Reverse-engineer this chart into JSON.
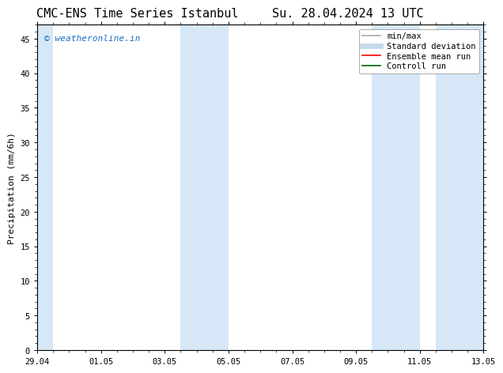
{
  "title_left": "CMC-ENS Time Series Istanbul",
  "title_right": "Su. 28.04.2024 13 UTC",
  "ylabel": "Precipitation (mm/6h)",
  "xlim_days": [
    0.0,
    14.0
  ],
  "ylim": [
    0,
    47
  ],
  "yticks": [
    0,
    5,
    10,
    15,
    20,
    25,
    30,
    35,
    40,
    45
  ],
  "xtick_labels": [
    "29.04",
    "01.05",
    "03.05",
    "05.05",
    "07.05",
    "09.05",
    "11.05",
    "13.05"
  ],
  "xtick_positions": [
    0,
    2,
    4,
    6,
    8,
    10,
    12,
    14
  ],
  "background_color": "#ffffff",
  "plot_bg_color": "#ffffff",
  "shaded_regions": [
    {
      "x_start": 0.0,
      "x_end": 0.5,
      "color": "#d6e8f7"
    },
    {
      "x_start": 4.5,
      "x_end": 6.0,
      "color": "#d6e8f7"
    },
    {
      "x_start": 10.5,
      "x_end": 12.0,
      "color": "#d6e8f7"
    },
    {
      "x_start": 12.5,
      "x_end": 14.0,
      "color": "#d6e8f7"
    }
  ],
  "watermark_text": "© weatheronline.in",
  "watermark_color": "#1a6ec4",
  "legend_entries": [
    {
      "label": "min/max",
      "color": "#aaaaaa",
      "lw": 1.2,
      "style": "solid"
    },
    {
      "label": "Standard deviation",
      "color": "#c5daea",
      "lw": 5,
      "style": "solid"
    },
    {
      "label": "Ensemble mean run",
      "color": "#ff0000",
      "lw": 1.2,
      "style": "solid"
    },
    {
      "label": "Controll run",
      "color": "#006400",
      "lw": 1.2,
      "style": "solid"
    }
  ],
  "title_fontsize": 11,
  "tick_fontsize": 7.5,
  "legend_fontsize": 7.5,
  "ylabel_fontsize": 8,
  "watermark_fontsize": 8
}
